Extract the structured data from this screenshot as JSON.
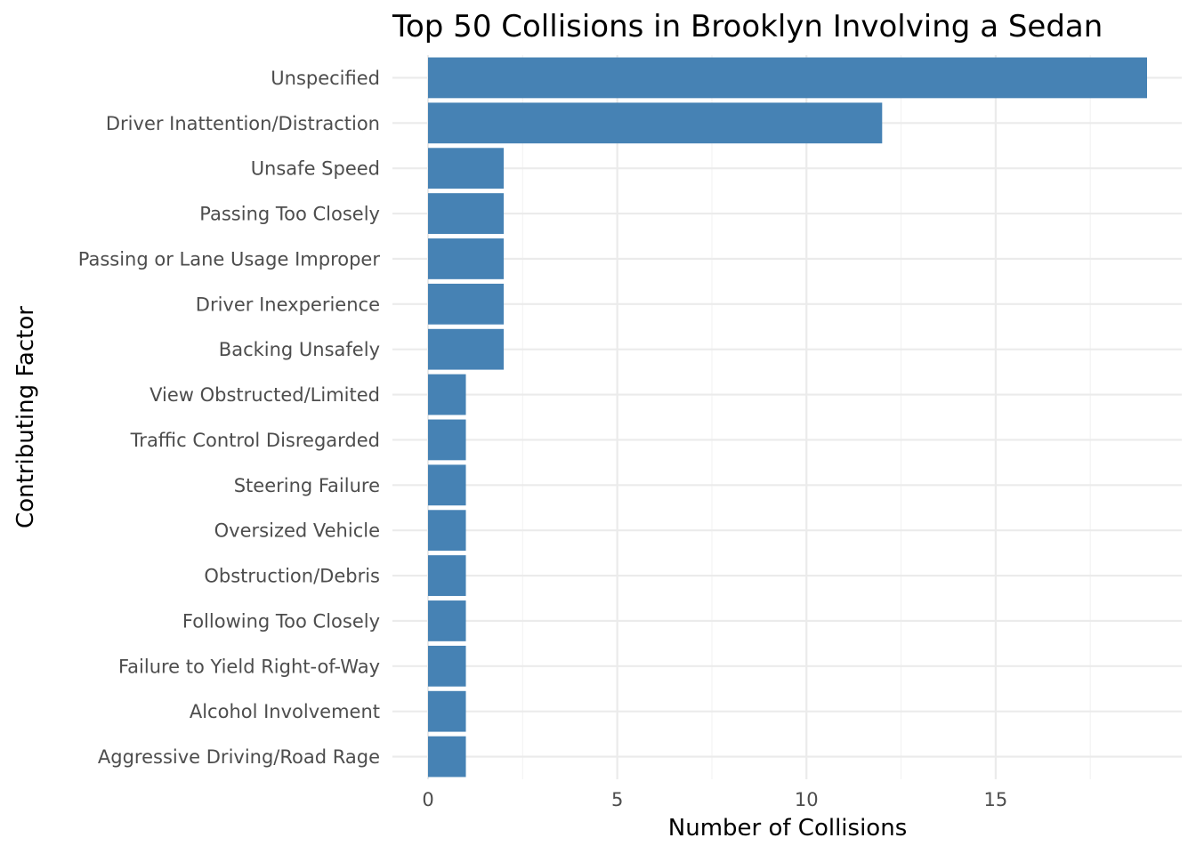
{
  "chart_data": {
    "type": "bar",
    "orientation": "horizontal",
    "title": "Top 50 Collisions in Brooklyn Involving a Sedan",
    "xlabel": "Number of Collisions",
    "ylabel": "Contributing Factor",
    "xlim": [
      0,
      19
    ],
    "x_ticks": [
      0,
      5,
      10,
      15
    ],
    "grid": true,
    "legend": "none",
    "bar_color": "#4682B4",
    "categories": [
      "Unspecified",
      "Driver Inattention/Distraction",
      "Unsafe Speed",
      "Passing Too Closely",
      "Passing or Lane Usage Improper",
      "Driver Inexperience",
      "Backing Unsafely",
      "View Obstructed/Limited",
      "Traffic Control Disregarded",
      "Steering Failure",
      "Oversized Vehicle",
      "Obstruction/Debris",
      "Following Too Closely",
      "Failure to Yield Right-of-Way",
      "Alcohol Involvement",
      "Aggressive Driving/Road Rage"
    ],
    "values": [
      19,
      12,
      2,
      2,
      2,
      2,
      2,
      1,
      1,
      1,
      1,
      1,
      1,
      1,
      1,
      1
    ]
  }
}
